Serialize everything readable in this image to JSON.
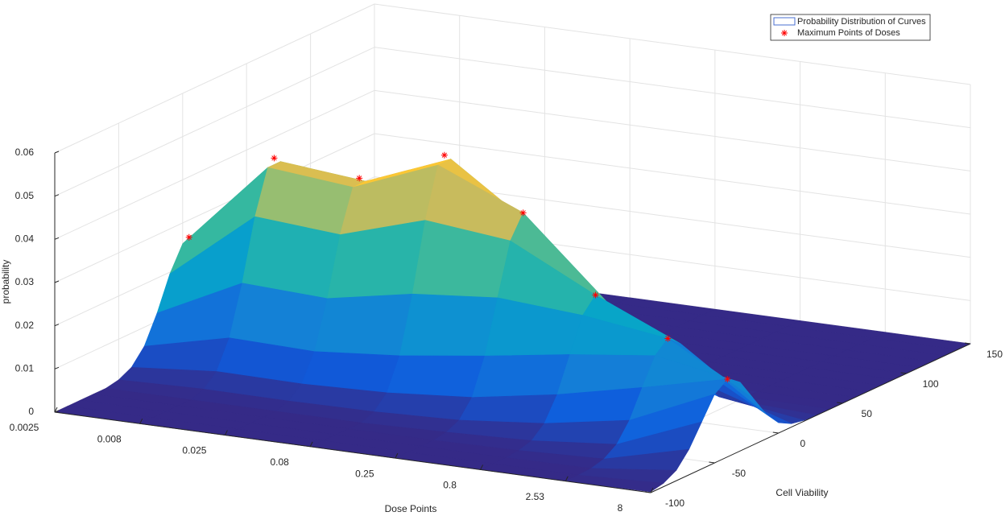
{
  "chart_data": {
    "type": "surface",
    "xlabel": "Dose Points",
    "ylabel": "Cell Viability",
    "zlabel": "probability",
    "categories": [
      "0.0025",
      "0.008",
      "0.025",
      "0.08",
      "0.25",
      "0.8",
      "2.53",
      "8"
    ],
    "ylim": [
      -100,
      150
    ],
    "yticks": [
      -100,
      -50,
      0,
      50,
      100,
      150
    ],
    "zlim": [
      0,
      0.06
    ],
    "zticks": [
      0,
      0.01,
      0.02,
      0.03,
      0.04,
      0.05,
      0.06
    ],
    "grid": true,
    "legend": "upper right",
    "colormap": "parula",
    "surface": {
      "name": "Probability Distribution of Curves",
      "edge_color": "#4a6fd0",
      "y": [
        -100,
        -90,
        -80,
        -70,
        -60,
        -50,
        -40,
        -30,
        -20,
        -10,
        0,
        10,
        20,
        30,
        40,
        50,
        60,
        70,
        80,
        90,
        100,
        110,
        120,
        130,
        140,
        150
      ],
      "z": [
        [
          0,
          0,
          0,
          0,
          0,
          0.0006,
          0.0021,
          0.0056,
          0.0119,
          0.0196,
          0.0252,
          0.0252,
          0.0196,
          0.0119,
          0.0056,
          0.0021,
          0.0006,
          0,
          0,
          0,
          0,
          0,
          0,
          0,
          0,
          0
        ],
        [
          0,
          0,
          0,
          0,
          0,
          0.0011,
          0.0038,
          0.0102,
          0.0215,
          0.0355,
          0.0455,
          0.0455,
          0.0355,
          0.0215,
          0.0102,
          0.0038,
          0.0011,
          0,
          0,
          0,
          0,
          0,
          0,
          0,
          0,
          0
        ],
        [
          0,
          0,
          0,
          0,
          0,
          0.001,
          0.0036,
          0.0097,
          0.0206,
          0.034,
          0.0436,
          0.0436,
          0.034,
          0.0206,
          0.0097,
          0.0036,
          0.001,
          0,
          0,
          0,
          0,
          0,
          0,
          0,
          0,
          0
        ],
        [
          0,
          0,
          0,
          0,
          0,
          0.0012,
          0.0042,
          0.0114,
          0.0243,
          0.04,
          0.0514,
          0.0514,
          0.04,
          0.0243,
          0.0114,
          0.0042,
          0.0012,
          0,
          0,
          0,
          0,
          0,
          0,
          0,
          0,
          0
        ],
        [
          0,
          0,
          0,
          0,
          0.0005,
          0.0019,
          0.0058,
          0.014,
          0.0261,
          0.0379,
          0.043,
          0.0379,
          0.0261,
          0.014,
          0.0058,
          0.0019,
          0.0005,
          0,
          0,
          0,
          0,
          0,
          0,
          0,
          0,
          0
        ],
        [
          0,
          0,
          0,
          0.0003,
          0.0012,
          0.0038,
          0.0091,
          0.017,
          0.0247,
          0.028,
          0.0247,
          0.017,
          0.0091,
          0.0038,
          0.0012,
          0.0003,
          0,
          0,
          0,
          0,
          0,
          0,
          0,
          0,
          0,
          0
        ],
        [
          0,
          0,
          0.0002,
          0.001,
          0.003,
          0.0072,
          0.0134,
          0.0194,
          0.022,
          0.0194,
          0.0134,
          0.0072,
          0.003,
          0.001,
          0.0002,
          0,
          0,
          0,
          0,
          0,
          0,
          0,
          0,
          0,
          0,
          0
        ],
        [
          0.0002,
          0.0008,
          0.0024,
          0.0059,
          0.0109,
          0.0159,
          0.018,
          0.0159,
          0.0109,
          0.0059,
          0.0024,
          0.0008,
          0.0002,
          0,
          0,
          0,
          0,
          0,
          0,
          0,
          0,
          0,
          0,
          0,
          0,
          0
        ]
      ]
    },
    "points": {
      "name": "Maximum Points of Doses",
      "color": "#ff0000",
      "y": [
        5,
        5,
        5,
        5,
        0,
        -10,
        -20,
        -40
      ],
      "values": [
        0.026,
        0.047,
        0.045,
        0.053,
        0.043,
        0.028,
        0.022,
        0.018
      ]
    }
  }
}
